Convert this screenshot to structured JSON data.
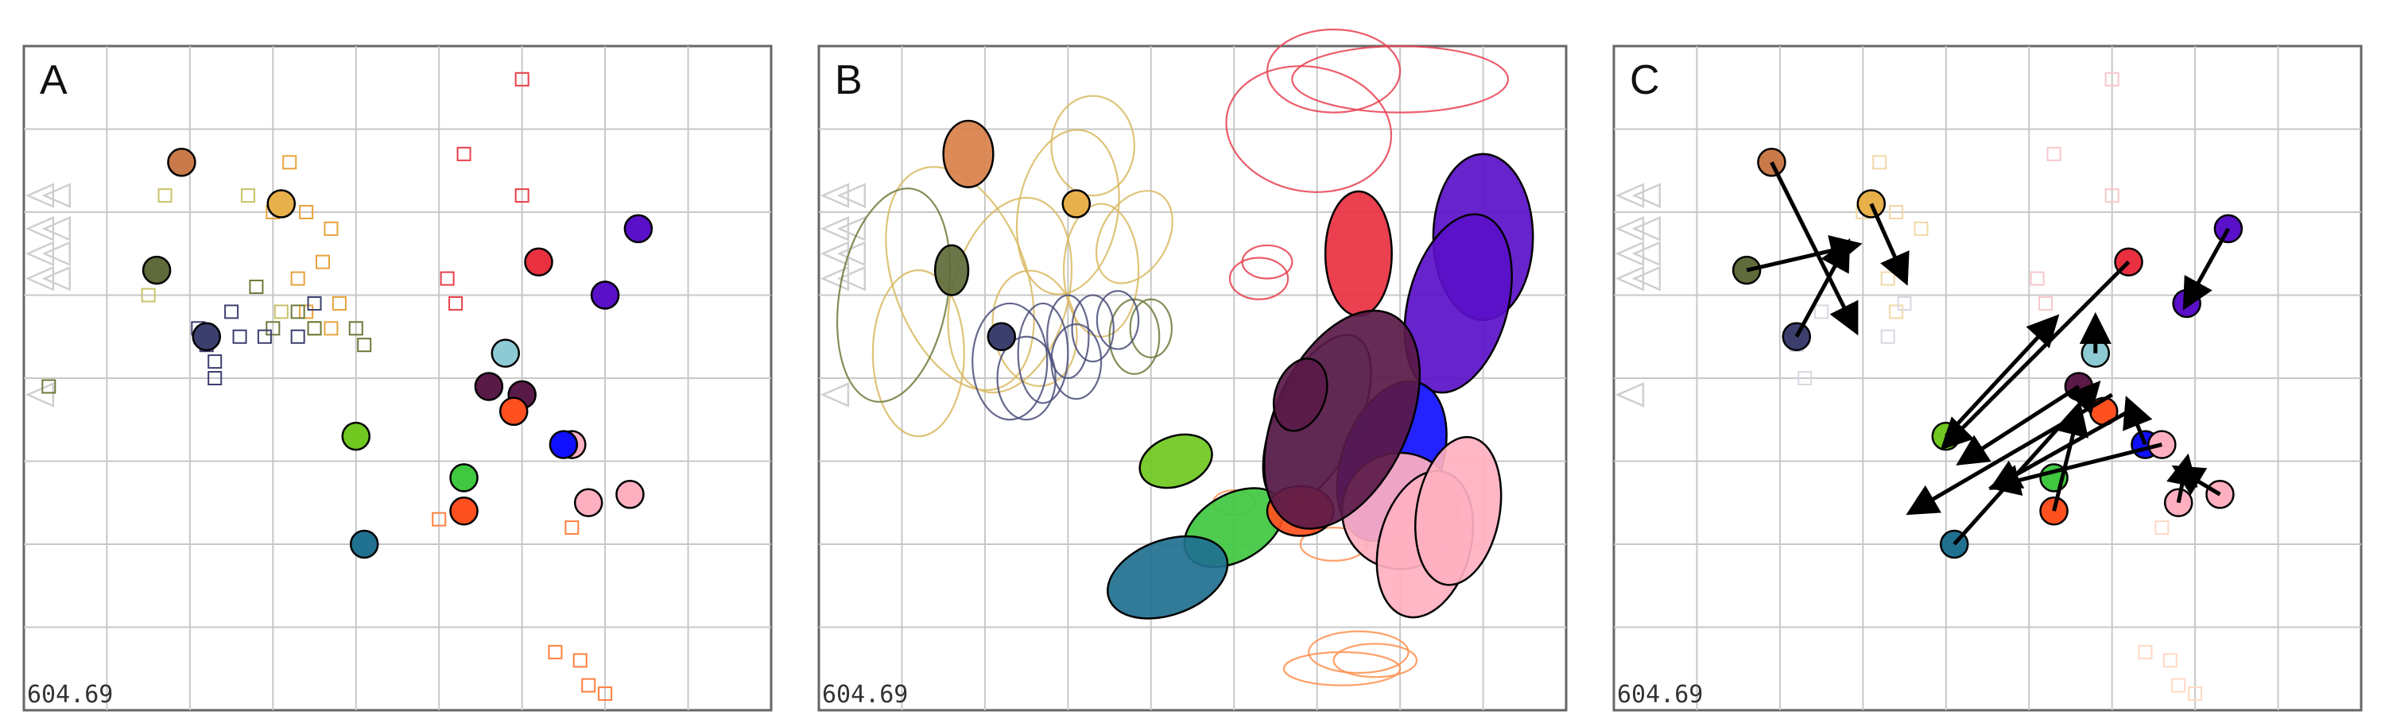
{
  "chart_data": [
    {
      "type": "scatter",
      "panel": "A",
      "stat": "604.69",
      "xlim": [
        0,
        9
      ],
      "ylim": [
        0,
        8
      ],
      "grid": true,
      "gray_triangles": [
        [
          0.2,
          6.2
        ],
        [
          0.2,
          5.8
        ],
        [
          0.2,
          5.5
        ],
        [
          0.2,
          5.2
        ],
        [
          0.4,
          6.2
        ],
        [
          0.4,
          5.8
        ],
        [
          0.4,
          5.5
        ],
        [
          0.4,
          5.2
        ],
        [
          0.2,
          3.8
        ]
      ],
      "squares": [
        {
          "color": "#e8a33d",
          "points": [
            [
              3.2,
              6.6
            ],
            [
              3.0,
              6.0
            ],
            [
              3.4,
              6.0
            ],
            [
              3.7,
              5.8
            ],
            [
              3.6,
              5.4
            ],
            [
              3.3,
              5.2
            ],
            [
              3.4,
              4.8
            ],
            [
              3.7,
              4.6
            ],
            [
              3.8,
              4.9
            ],
            [
              3.5,
              4.6
            ]
          ]
        },
        {
          "color": "#c9c36a",
          "points": [
            [
              2.7,
              6.2
            ],
            [
              1.7,
              6.2
            ],
            [
              1.5,
              5.0
            ],
            [
              3.1,
              4.8
            ]
          ]
        },
        {
          "color": "#6b7a3a",
          "points": [
            [
              2.8,
              5.1
            ],
            [
              3.5,
              4.6
            ],
            [
              0.3,
              3.9
            ],
            [
              4.0,
              4.6
            ],
            [
              3.3,
              4.8
            ],
            [
              3.0,
              4.6
            ],
            [
              4.1,
              4.4
            ]
          ]
        },
        {
          "color": "#3c3f6e",
          "points": [
            [
              2.2,
              4.4
            ],
            [
              2.9,
              4.5
            ],
            [
              2.6,
              4.5
            ],
            [
              2.3,
              4.2
            ],
            [
              2.5,
              4.8
            ],
            [
              2.1,
              4.6
            ],
            [
              2.3,
              4.0
            ],
            [
              3.3,
              4.5
            ],
            [
              3.5,
              4.9
            ]
          ]
        },
        {
          "color": "#e8404a",
          "points": [
            [
              6.0,
              7.6
            ],
            [
              5.3,
              6.7
            ],
            [
              6.0,
              6.2
            ],
            [
              5.1,
              5.2
            ],
            [
              5.2,
              4.9
            ]
          ]
        },
        {
          "color": "#ff8040",
          "points": [
            [
              6.6,
              2.2
            ],
            [
              6.4,
              0.7
            ],
            [
              6.7,
              0.6
            ],
            [
              6.8,
              0.3
            ],
            [
              7.0,
              0.2
            ],
            [
              5.0,
              2.3
            ]
          ]
        }
      ],
      "points": [
        {
          "x": 1.9,
          "y": 6.6,
          "color": "#c97a4a"
        },
        {
          "x": 3.1,
          "y": 6.1,
          "color": "#e8b04a"
        },
        {
          "x": 1.6,
          "y": 5.3,
          "color": "#5f6b3a"
        },
        {
          "x": 2.2,
          "y": 4.5,
          "color": "#3c3f6e"
        },
        {
          "x": 6.2,
          "y": 5.4,
          "color": "#e83040"
        },
        {
          "x": 7.4,
          "y": 5.8,
          "color": "#5a10c8"
        },
        {
          "x": 7.0,
          "y": 5.0,
          "color": "#5a10c8"
        },
        {
          "x": 5.8,
          "y": 4.3,
          "color": "#8ecad3"
        },
        {
          "x": 5.6,
          "y": 3.9,
          "color": "#5a1a48"
        },
        {
          "x": 6.0,
          "y": 3.8,
          "color": "#5a1a48"
        },
        {
          "x": 5.9,
          "y": 3.6,
          "color": "#ff5020"
        },
        {
          "x": 6.6,
          "y": 3.2,
          "color": "#ffb0c0"
        },
        {
          "x": 6.5,
          "y": 3.2,
          "color": "#1010ff"
        },
        {
          "x": 4.0,
          "y": 3.3,
          "color": "#70c820"
        },
        {
          "x": 5.3,
          "y": 2.8,
          "color": "#40c840"
        },
        {
          "x": 5.3,
          "y": 2.4,
          "color": "#ff5020"
        },
        {
          "x": 6.8,
          "y": 2.5,
          "color": "#ffb0c0"
        },
        {
          "x": 7.3,
          "y": 2.6,
          "color": "#ffb0c0"
        },
        {
          "x": 4.1,
          "y": 2.0,
          "color": "#207090"
        }
      ]
    },
    {
      "type": "scatter",
      "panel": "B",
      "stat": "604.69",
      "xlim": [
        0,
        9
      ],
      "ylim": [
        0,
        8
      ],
      "grid": true,
      "gray_triangles": [
        [
          0.2,
          6.2
        ],
        [
          0.2,
          5.8
        ],
        [
          0.2,
          5.5
        ],
        [
          0.2,
          5.2
        ],
        [
          0.4,
          6.2
        ],
        [
          0.4,
          5.8
        ],
        [
          0.4,
          5.5
        ],
        [
          0.4,
          5.2
        ],
        [
          0.2,
          3.8
        ]
      ],
      "outlines": [
        {
          "color": "#d9b860",
          "ellipses": [
            [
              1.7,
              5.2,
              1.6,
              2.8,
              -20
            ],
            [
              2.3,
              5.0,
              1.4,
              2.4,
              15
            ],
            [
              3.0,
              6.0,
              1.2,
              2.0,
              10
            ],
            [
              3.4,
              5.3,
              0.9,
              1.6,
              0
            ],
            [
              3.8,
              5.7,
              0.8,
              1.2,
              30
            ],
            [
              2.6,
              4.6,
              1.0,
              1.4,
              -10
            ],
            [
              3.3,
              6.8,
              1.0,
              1.2,
              0
            ],
            [
              1.2,
              4.3,
              1.1,
              2.0,
              0
            ]
          ]
        },
        {
          "color": "#6b7a3a",
          "ellipses": [
            [
              0.9,
              5.0,
              1.3,
              2.6,
              10
            ],
            [
              3.8,
              4.5,
              0.6,
              0.9,
              0
            ],
            [
              4.0,
              4.6,
              0.5,
              0.7,
              0
            ]
          ]
        },
        {
          "color": "#4a4d7a",
          "ellipses": [
            [
              2.3,
              4.2,
              0.9,
              1.4,
              0
            ],
            [
              2.7,
              4.3,
              0.6,
              1.2,
              0
            ],
            [
              3.0,
              4.5,
              0.5,
              1.0,
              0
            ],
            [
              3.3,
              4.6,
              0.5,
              0.8,
              0
            ],
            [
              3.6,
              4.7,
              0.5,
              0.7,
              0
            ],
            [
              2.5,
              4.0,
              0.7,
              1.0,
              0
            ],
            [
              3.1,
              4.2,
              0.6,
              0.9,
              0
            ]
          ]
        },
        {
          "color": "#e84050",
          "ellipses": [
            [
              5.9,
              7.0,
              2.0,
              1.5,
              10
            ],
            [
              7.0,
              7.6,
              2.6,
              0.8,
              0
            ],
            [
              6.2,
              7.7,
              1.6,
              1.0,
              0
            ],
            [
              5.3,
              5.2,
              0.7,
              0.5,
              0
            ],
            [
              5.4,
              5.4,
              0.6,
              0.4,
              0
            ]
          ]
        },
        {
          "color": "#ff9050",
          "ellipses": [
            [
              6.3,
              0.5,
              1.4,
              0.4,
              0
            ],
            [
              6.5,
              0.7,
              1.2,
              0.5,
              0
            ],
            [
              6.7,
              0.6,
              1.0,
              0.4,
              0
            ],
            [
              6.2,
              2.0,
              0.8,
              0.4,
              0
            ],
            [
              5.0,
              2.5,
              0.5,
              0.3,
              0
            ]
          ]
        }
      ],
      "ellipses": [
        {
          "x": 1.8,
          "y": 6.7,
          "rx": 0.6,
          "ry": 0.8,
          "rot": 0,
          "color": "#d9804a"
        },
        {
          "x": 1.6,
          "y": 5.3,
          "rx": 0.4,
          "ry": 0.6,
          "rot": 0,
          "color": "#5f6b3a"
        },
        {
          "x": 8.0,
          "y": 5.7,
          "rx": 1.2,
          "ry": 2.0,
          "rot": 0,
          "color": "#5a10c8"
        },
        {
          "x": 7.7,
          "y": 4.9,
          "rx": 1.2,
          "ry": 2.2,
          "rot": 15,
          "color": "#5a10c8"
        },
        {
          "x": 6.5,
          "y": 5.5,
          "rx": 0.8,
          "ry": 1.5,
          "rot": 0,
          "color": "#e83040"
        },
        {
          "x": 6.0,
          "y": 3.5,
          "rx": 1.0,
          "ry": 2.2,
          "rot": 25,
          "color": "#9acdd7"
        },
        {
          "x": 6.9,
          "y": 3.0,
          "rx": 1.2,
          "ry": 2.0,
          "rot": 20,
          "color": "#1010ff"
        },
        {
          "x": 7.0,
          "y": 2.4,
          "rx": 1.4,
          "ry": 1.4,
          "rot": 0,
          "color": "#ffb0c0"
        },
        {
          "x": 7.3,
          "y": 2.0,
          "rx": 1.1,
          "ry": 1.8,
          "rot": 15,
          "color": "#ffb0c0"
        },
        {
          "x": 7.7,
          "y": 2.4,
          "rx": 1.0,
          "ry": 1.8,
          "rot": 10,
          "color": "#ffb0c0"
        },
        {
          "x": 5.0,
          "y": 2.2,
          "rx": 1.3,
          "ry": 0.8,
          "rot": -30,
          "color": "#40c840"
        },
        {
          "x": 5.8,
          "y": 2.4,
          "rx": 0.8,
          "ry": 0.6,
          "rot": 0,
          "color": "#ff5020"
        },
        {
          "x": 6.3,
          "y": 3.5,
          "rx": 1.6,
          "ry": 2.8,
          "rot": 25,
          "color": "#5a1a48"
        },
        {
          "x": 5.8,
          "y": 3.8,
          "rx": 0.6,
          "ry": 0.9,
          "rot": 20,
          "color": "#5a1a48"
        },
        {
          "x": 4.3,
          "y": 3.0,
          "rx": 0.9,
          "ry": 0.6,
          "rot": -20,
          "color": "#70c820"
        },
        {
          "x": 4.2,
          "y": 1.6,
          "rx": 1.5,
          "ry": 0.9,
          "rot": -20,
          "color": "#207090"
        }
      ],
      "points": [
        {
          "x": 3.1,
          "y": 6.1,
          "color": "#e8b04a"
        },
        {
          "x": 2.2,
          "y": 4.5,
          "color": "#3c3f6e"
        }
      ]
    },
    {
      "type": "scatter",
      "panel": "C",
      "stat": "604.69",
      "xlim": [
        0,
        9
      ],
      "ylim": [
        0,
        8
      ],
      "grid": true,
      "gray_triangles": [
        [
          0.2,
          6.2
        ],
        [
          0.2,
          5.8
        ],
        [
          0.2,
          5.5
        ],
        [
          0.2,
          5.2
        ],
        [
          0.4,
          6.2
        ],
        [
          0.4,
          5.8
        ],
        [
          0.4,
          5.5
        ],
        [
          0.4,
          5.2
        ],
        [
          0.2,
          3.8
        ]
      ],
      "squares": [
        {
          "color": "#f2d8a6",
          "points": [
            [
              3.2,
              6.6
            ],
            [
              3.0,
              6.0
            ],
            [
              3.4,
              6.0
            ],
            [
              3.7,
              5.8
            ],
            [
              3.3,
              5.2
            ],
            [
              3.4,
              4.8
            ]
          ]
        },
        {
          "color": "#f7c7cc",
          "points": [
            [
              6.0,
              7.6
            ],
            [
              5.3,
              6.7
            ],
            [
              6.0,
              6.2
            ],
            [
              5.1,
              5.2
            ],
            [
              5.2,
              4.9
            ]
          ]
        },
        {
          "color": "#d8d8e2",
          "points": [
            [
              2.2,
              4.4
            ],
            [
              2.5,
              4.8
            ],
            [
              2.3,
              4.0
            ],
            [
              3.3,
              4.5
            ],
            [
              3.5,
              4.9
            ]
          ]
        },
        {
          "color": "#ffd8c4",
          "points": [
            [
              6.6,
              2.2
            ],
            [
              6.4,
              0.7
            ],
            [
              6.7,
              0.6
            ],
            [
              6.8,
              0.3
            ],
            [
              7.0,
              0.2
            ]
          ]
        }
      ],
      "arrows": [
        {
          "from": [
            1.9,
            6.6
          ],
          "to": [
            2.9,
            4.6
          ]
        },
        {
          "from": [
            3.1,
            6.1
          ],
          "to": [
            3.5,
            5.2
          ]
        },
        {
          "from": [
            1.6,
            5.3
          ],
          "to": [
            2.9,
            5.6
          ]
        },
        {
          "from": [
            2.2,
            4.5
          ],
          "to": [
            2.8,
            5.6
          ]
        },
        {
          "from": [
            6.2,
            5.4
          ],
          "to": [
            4.0,
            3.2
          ]
        },
        {
          "from": [
            7.4,
            5.8
          ],
          "to": [
            6.9,
            4.9
          ]
        },
        {
          "from": [
            5.8,
            4.3
          ],
          "to": [
            5.8,
            4.7
          ]
        },
        {
          "from": [
            5.6,
            3.9
          ],
          "to": [
            4.2,
            3.0
          ]
        },
        {
          "from": [
            4.0,
            3.3
          ],
          "to": [
            5.3,
            4.7
          ]
        },
        {
          "from": [
            6.2,
            3.6
          ],
          "to": [
            4.6,
            2.7
          ]
        },
        {
          "from": [
            5.3,
            2.4
          ],
          "to": [
            5.6,
            3.6
          ]
        },
        {
          "from": [
            4.1,
            2.0
          ],
          "to": [
            5.8,
            3.9
          ]
        },
        {
          "from": [
            6.4,
            3.2
          ],
          "to": [
            6.2,
            3.7
          ]
        },
        {
          "from": [
            7.3,
            2.6
          ],
          "to": [
            6.8,
            2.9
          ]
        },
        {
          "from": [
            6.8,
            2.5
          ],
          "to": [
            6.9,
            3.0
          ]
        },
        {
          "from": [
            6.6,
            3.2
          ],
          "to": [
            4.6,
            2.7
          ]
        },
        {
          "from": [
            6.0,
            3.8
          ],
          "to": [
            3.6,
            2.4
          ]
        }
      ],
      "points": [
        {
          "x": 1.9,
          "y": 6.6,
          "color": "#c97a4a"
        },
        {
          "x": 3.1,
          "y": 6.1,
          "color": "#e8b04a"
        },
        {
          "x": 1.6,
          "y": 5.3,
          "color": "#5f6b3a"
        },
        {
          "x": 2.2,
          "y": 4.5,
          "color": "#3c3f6e"
        },
        {
          "x": 6.2,
          "y": 5.4,
          "color": "#e83040"
        },
        {
          "x": 7.4,
          "y": 5.8,
          "color": "#5a10c8"
        },
        {
          "x": 6.9,
          "y": 4.9,
          "color": "#5a10c8"
        },
        {
          "x": 5.8,
          "y": 4.3,
          "color": "#8ecad3"
        },
        {
          "x": 5.6,
          "y": 3.9,
          "color": "#5a1a48"
        },
        {
          "x": 5.9,
          "y": 3.6,
          "color": "#ff5020"
        },
        {
          "x": 6.4,
          "y": 3.2,
          "color": "#1010ff"
        },
        {
          "x": 6.6,
          "y": 3.2,
          "color": "#ffb0c0"
        },
        {
          "x": 4.0,
          "y": 3.3,
          "color": "#70c820"
        },
        {
          "x": 5.3,
          "y": 2.8,
          "color": "#40c840"
        },
        {
          "x": 5.3,
          "y": 2.4,
          "color": "#ff5020"
        },
        {
          "x": 6.8,
          "y": 2.5,
          "color": "#ffb0c0"
        },
        {
          "x": 7.3,
          "y": 2.6,
          "color": "#ffb0c0"
        },
        {
          "x": 4.1,
          "y": 2.0,
          "color": "#207090"
        }
      ]
    }
  ]
}
